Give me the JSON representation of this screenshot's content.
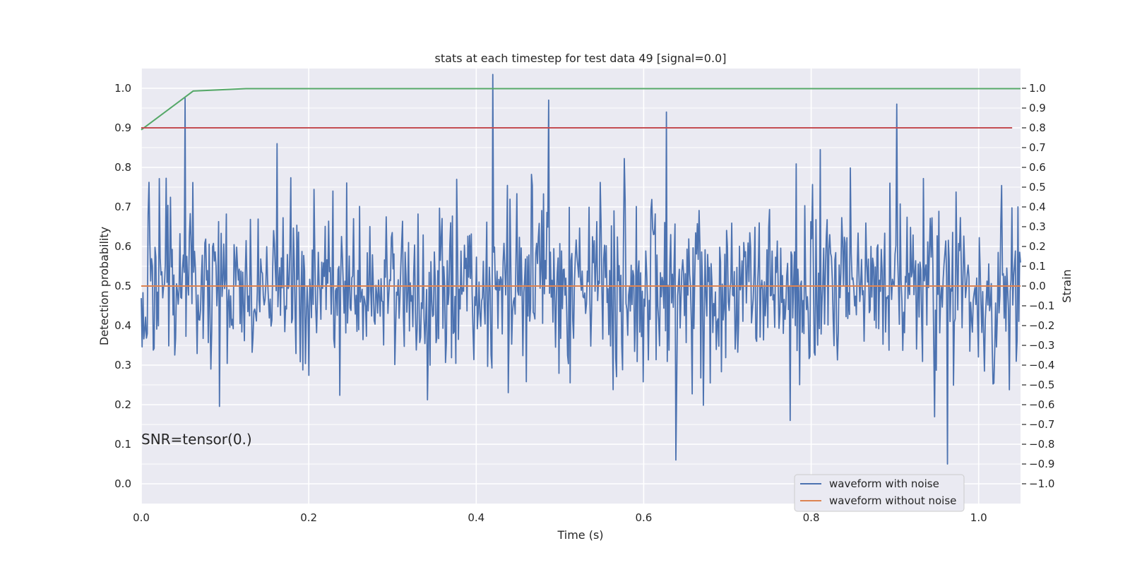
{
  "chart_data": {
    "type": "line",
    "title": "stats at each timestep for test data 49 [signal=0.0]",
    "xlabel": "Time (s)",
    "ylabel_left": "Detection probability",
    "ylabel_right": "Strain",
    "annotation": "SNR=tensor(0.)",
    "xlim": [
      0.0,
      1.05
    ],
    "ylim_left": [
      -0.05,
      1.05
    ],
    "ylim_right": [
      -1.1,
      1.1
    ],
    "xticks": [
      0.0,
      0.2,
      0.4,
      0.6,
      0.8,
      1.0
    ],
    "yticks_left": [
      0.0,
      0.1,
      0.2,
      0.3,
      0.4,
      0.5,
      0.6,
      0.7,
      0.8,
      0.9,
      1.0
    ],
    "yticks_right": [
      -1.0,
      -0.9,
      -0.8,
      -0.7,
      -0.6,
      -0.5,
      -0.4,
      -0.3,
      -0.2,
      -0.1,
      0.0,
      0.1,
      0.2,
      0.3,
      0.4,
      0.5,
      0.6,
      0.7,
      0.8,
      0.9,
      1.0
    ],
    "grid": true,
    "legend_position": "lower-right",
    "colors": {
      "background": "#eaeaf2",
      "grid": "#ffffff",
      "noisy": "#4c72b0",
      "clean": "#dd8452",
      "probability": "#55a868",
      "threshold": "#c44e52"
    },
    "series": [
      {
        "name": "waveform with noise",
        "axis": "right",
        "generated": true,
        "points": 1024,
        "x_range": [
          0.0,
          1.05
        ],
        "std": 0.22,
        "peaks": [
          [
            0.052,
            0.95
          ],
          [
            0.42,
            1.07
          ],
          [
            0.487,
            0.94
          ],
          [
            0.627,
            0.88
          ],
          [
            0.902,
            0.92
          ],
          [
            0.638,
            -0.88
          ],
          [
            0.963,
            -0.9
          ],
          [
            0.775,
            -0.68
          ]
        ]
      },
      {
        "name": "waveform without noise",
        "axis": "right",
        "x": [
          0.0,
          1.05
        ],
        "y": [
          0.0,
          0.0
        ]
      },
      {
        "axis": "left",
        "x": [
          0.0,
          0.062,
          0.125,
          1.05
        ],
        "y": [
          0.895,
          0.993,
          0.999,
          0.999
        ]
      },
      {
        "axis": "left",
        "x": [
          0.0,
          1.04
        ],
        "y": [
          0.9,
          0.9
        ]
      }
    ]
  }
}
